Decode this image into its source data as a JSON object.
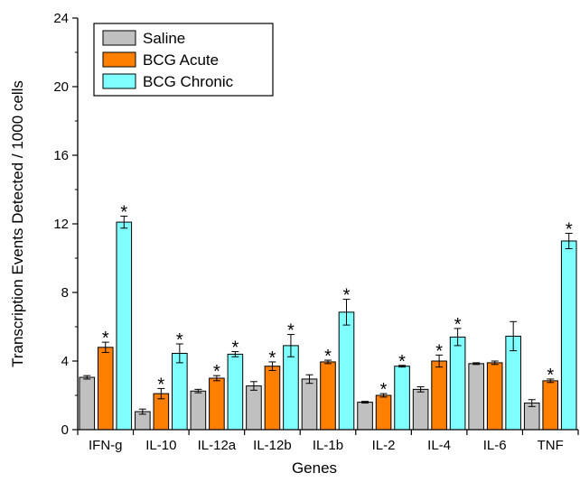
{
  "chart_data": {
    "type": "bar",
    "xlabel": "Genes",
    "ylabel": "Transcription Events Detected / 1000 cells",
    "ylim": [
      0,
      24
    ],
    "yticks": [
      0,
      4,
      8,
      12,
      16,
      20,
      24
    ],
    "categories": [
      "IFN-g",
      "IL-10",
      "IL-12a",
      "IL-12b",
      "IL-1b",
      "IL-2",
      "IL-4",
      "IL-6",
      "TNF"
    ],
    "series": [
      {
        "name": "Saline",
        "color": "#c0c0c0",
        "values": [
          3.05,
          1.05,
          2.25,
          2.55,
          2.95,
          1.6,
          2.35,
          3.85,
          1.55
        ],
        "errors": [
          0.1,
          0.15,
          0.1,
          0.25,
          0.25,
          0.05,
          0.15,
          0.05,
          0.2
        ],
        "significant": [
          false,
          false,
          false,
          false,
          false,
          false,
          false,
          false,
          false
        ]
      },
      {
        "name": "BCG Acute",
        "color": "#ff7f00",
        "values": [
          4.8,
          2.1,
          3.0,
          3.7,
          3.95,
          2.0,
          4.0,
          3.9,
          2.85
        ],
        "errors": [
          0.3,
          0.3,
          0.15,
          0.25,
          0.1,
          0.1,
          0.35,
          0.1,
          0.1
        ],
        "significant": [
          true,
          true,
          true,
          true,
          true,
          true,
          true,
          false,
          true
        ]
      },
      {
        "name": "BCG Chronic",
        "color": "#80ffff",
        "values": [
          12.1,
          4.45,
          4.4,
          4.9,
          6.85,
          3.7,
          5.4,
          5.45,
          11.0
        ],
        "errors": [
          0.35,
          0.55,
          0.15,
          0.65,
          0.75,
          0.05,
          0.5,
          0.85,
          0.45
        ],
        "significant": [
          true,
          true,
          true,
          true,
          true,
          true,
          true,
          false,
          true
        ]
      }
    ],
    "significance_marker": "*",
    "legend_position": "top-left"
  }
}
